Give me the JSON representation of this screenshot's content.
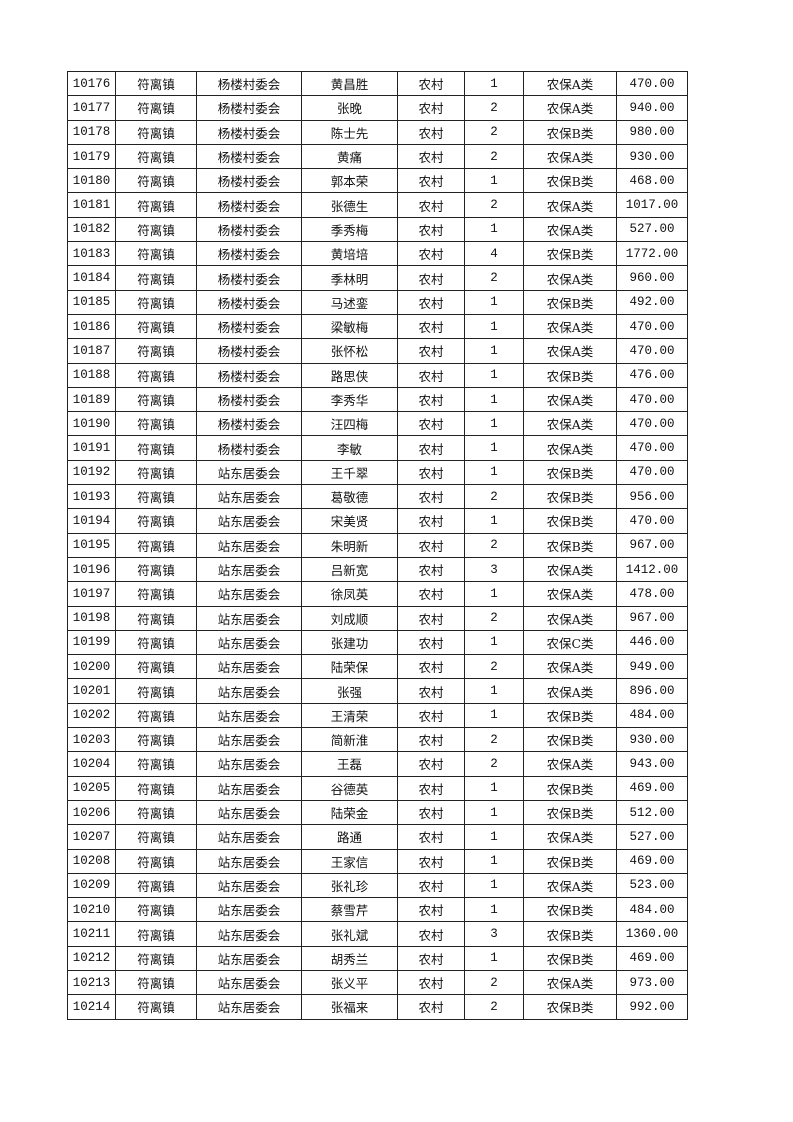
{
  "table": {
    "rows": [
      [
        "10176",
        "符离镇",
        "杨楼村委会",
        "黄昌胜",
        "农村",
        "1",
        "农保A类",
        "470.00"
      ],
      [
        "10177",
        "符离镇",
        "杨楼村委会",
        "张晚",
        "农村",
        "2",
        "农保A类",
        "940.00"
      ],
      [
        "10178",
        "符离镇",
        "杨楼村委会",
        "陈士先",
        "农村",
        "2",
        "农保B类",
        "980.00"
      ],
      [
        "10179",
        "符离镇",
        "杨楼村委会",
        "黄痛",
        "农村",
        "2",
        "农保A类",
        "930.00"
      ],
      [
        "10180",
        "符离镇",
        "杨楼村委会",
        "郭本荣",
        "农村",
        "1",
        "农保B类",
        "468.00"
      ],
      [
        "10181",
        "符离镇",
        "杨楼村委会",
        "张德生",
        "农村",
        "2",
        "农保A类",
        "1017.00"
      ],
      [
        "10182",
        "符离镇",
        "杨楼村委会",
        "季秀梅",
        "农村",
        "1",
        "农保A类",
        "527.00"
      ],
      [
        "10183",
        "符离镇",
        "杨楼村委会",
        "黄培培",
        "农村",
        "4",
        "农保B类",
        "1772.00"
      ],
      [
        "10184",
        "符离镇",
        "杨楼村委会",
        "季林明",
        "农村",
        "2",
        "农保A类",
        "960.00"
      ],
      [
        "10185",
        "符离镇",
        "杨楼村委会",
        "马述銮",
        "农村",
        "1",
        "农保B类",
        "492.00"
      ],
      [
        "10186",
        "符离镇",
        "杨楼村委会",
        "梁敏梅",
        "农村",
        "1",
        "农保A类",
        "470.00"
      ],
      [
        "10187",
        "符离镇",
        "杨楼村委会",
        "张怀松",
        "农村",
        "1",
        "农保A类",
        "470.00"
      ],
      [
        "10188",
        "符离镇",
        "杨楼村委会",
        "路思侠",
        "农村",
        "1",
        "农保B类",
        "476.00"
      ],
      [
        "10189",
        "符离镇",
        "杨楼村委会",
        "李秀华",
        "农村",
        "1",
        "农保A类",
        "470.00"
      ],
      [
        "10190",
        "符离镇",
        "杨楼村委会",
        "汪四梅",
        "农村",
        "1",
        "农保A类",
        "470.00"
      ],
      [
        "10191",
        "符离镇",
        "杨楼村委会",
        "李敏",
        "农村",
        "1",
        "农保A类",
        "470.00"
      ],
      [
        "10192",
        "符离镇",
        "站东居委会",
        "王千翠",
        "农村",
        "1",
        "农保B类",
        "470.00"
      ],
      [
        "10193",
        "符离镇",
        "站东居委会",
        "葛敬德",
        "农村",
        "2",
        "农保B类",
        "956.00"
      ],
      [
        "10194",
        "符离镇",
        "站东居委会",
        "宋美贤",
        "农村",
        "1",
        "农保B类",
        "470.00"
      ],
      [
        "10195",
        "符离镇",
        "站东居委会",
        "朱明新",
        "农村",
        "2",
        "农保B类",
        "967.00"
      ],
      [
        "10196",
        "符离镇",
        "站东居委会",
        "吕新宽",
        "农村",
        "3",
        "农保A类",
        "1412.00"
      ],
      [
        "10197",
        "符离镇",
        "站东居委会",
        "徐凤英",
        "农村",
        "1",
        "农保A类",
        "478.00"
      ],
      [
        "10198",
        "符离镇",
        "站东居委会",
        "刘成顺",
        "农村",
        "2",
        "农保A类",
        "967.00"
      ],
      [
        "10199",
        "符离镇",
        "站东居委会",
        "张建功",
        "农村",
        "1",
        "农保C类",
        "446.00"
      ],
      [
        "10200",
        "符离镇",
        "站东居委会",
        "陆荣保",
        "农村",
        "2",
        "农保A类",
        "949.00"
      ],
      [
        "10201",
        "符离镇",
        "站东居委会",
        "张强",
        "农村",
        "1",
        "农保A类",
        "896.00"
      ],
      [
        "10202",
        "符离镇",
        "站东居委会",
        "王清荣",
        "农村",
        "1",
        "农保B类",
        "484.00"
      ],
      [
        "10203",
        "符离镇",
        "站东居委会",
        "简新淮",
        "农村",
        "2",
        "农保B类",
        "930.00"
      ],
      [
        "10204",
        "符离镇",
        "站东居委会",
        "王磊",
        "农村",
        "2",
        "农保A类",
        "943.00"
      ],
      [
        "10205",
        "符离镇",
        "站东居委会",
        "谷德英",
        "农村",
        "1",
        "农保B类",
        "469.00"
      ],
      [
        "10206",
        "符离镇",
        "站东居委会",
        "陆荣金",
        "农村",
        "1",
        "农保B类",
        "512.00"
      ],
      [
        "10207",
        "符离镇",
        "站东居委会",
        "路通",
        "农村",
        "1",
        "农保A类",
        "527.00"
      ],
      [
        "10208",
        "符离镇",
        "站东居委会",
        "王家信",
        "农村",
        "1",
        "农保B类",
        "469.00"
      ],
      [
        "10209",
        "符离镇",
        "站东居委会",
        "张礼珍",
        "农村",
        "1",
        "农保A类",
        "523.00"
      ],
      [
        "10210",
        "符离镇",
        "站东居委会",
        "蔡雪芹",
        "农村",
        "1",
        "农保B类",
        "484.00"
      ],
      [
        "10211",
        "符离镇",
        "站东居委会",
        "张礼斌",
        "农村",
        "3",
        "农保B类",
        "1360.00"
      ],
      [
        "10212",
        "符离镇",
        "站东居委会",
        "胡秀兰",
        "农村",
        "1",
        "农保B类",
        "469.00"
      ],
      [
        "10213",
        "符离镇",
        "站东居委会",
        "张义平",
        "农村",
        "2",
        "农保A类",
        "973.00"
      ],
      [
        "10214",
        "符离镇",
        "站东居委会",
        "张福来",
        "农村",
        "2",
        "农保B类",
        "992.00"
      ]
    ]
  }
}
